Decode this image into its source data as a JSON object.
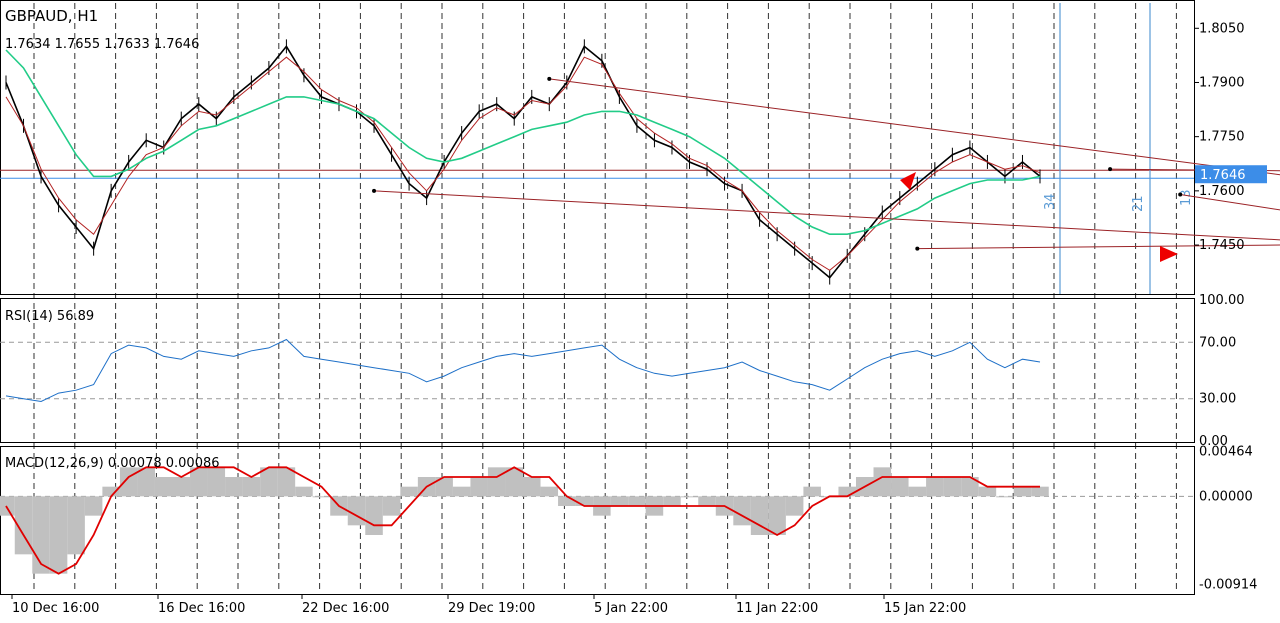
{
  "header": {
    "symbol": "GBPAUD, H1",
    "ohlc": "1.7634 1.7655 1.7633 1.7646"
  },
  "colors": {
    "background": "#ffffff",
    "price_line": "#000000",
    "ma_fast": "#b22222",
    "ma_slow": "#22cc88",
    "rsi_line": "#1e70c8",
    "macd_hist": "#c0c0c0",
    "macd_signal": "#e00000",
    "trendline": "#9b2226",
    "fib_time": "#5b9bd5",
    "current_price_badge": "#3c8de8",
    "arrow": "#ee0000"
  },
  "chart_data": [
    {
      "type": "line",
      "name": "price-panel",
      "title": "GBPAUD, H1",
      "y_ticks": [
        "1.8050",
        "1.7900",
        "1.7750",
        "1.7600",
        "1.7450"
      ],
      "ylim": [
        1.732,
        1.812
      ],
      "x_ticks": [
        "10 Dec 16:00",
        "16 Dec 16:00",
        "22 Dec 16:00",
        "29 Dec 19:00",
        "5 Jan 22:00",
        "11 Jan 22:00",
        "15 Jan 22:00"
      ],
      "current_price": "1.7646",
      "close": [
        1.79,
        1.778,
        1.764,
        1.756,
        1.75,
        1.744,
        1.76,
        1.768,
        1.774,
        1.772,
        1.78,
        1.784,
        1.78,
        1.786,
        1.79,
        1.794,
        1.8,
        1.792,
        1.786,
        1.784,
        1.782,
        1.778,
        1.77,
        1.762,
        1.758,
        1.768,
        1.776,
        1.782,
        1.784,
        1.78,
        1.786,
        1.784,
        1.79,
        1.8,
        1.796,
        1.786,
        1.778,
        1.774,
        1.772,
        1.768,
        1.766,
        1.762,
        1.76,
        1.752,
        1.748,
        1.744,
        1.74,
        1.736,
        1.742,
        1.748,
        1.754,
        1.758,
        1.762,
        1.766,
        1.77,
        1.772,
        1.768,
        1.764,
        1.768,
        1.764
      ],
      "ma_fast": [
        1.786,
        1.778,
        1.766,
        1.758,
        1.752,
        1.748,
        1.756,
        1.764,
        1.77,
        1.772,
        1.778,
        1.782,
        1.781,
        1.785,
        1.789,
        1.793,
        1.797,
        1.793,
        1.788,
        1.785,
        1.783,
        1.779,
        1.772,
        1.765,
        1.76,
        1.766,
        1.774,
        1.78,
        1.783,
        1.781,
        1.785,
        1.784,
        1.789,
        1.797,
        1.795,
        1.787,
        1.78,
        1.776,
        1.773,
        1.769,
        1.767,
        1.763,
        1.76,
        1.754,
        1.749,
        1.745,
        1.741,
        1.738,
        1.742,
        1.747,
        1.752,
        1.757,
        1.761,
        1.765,
        1.768,
        1.77,
        1.768,
        1.766,
        1.767,
        1.765
      ],
      "ma_slow": [
        1.799,
        1.794,
        1.786,
        1.778,
        1.77,
        1.764,
        1.764,
        1.766,
        1.769,
        1.771,
        1.774,
        1.777,
        1.778,
        1.78,
        1.782,
        1.784,
        1.786,
        1.786,
        1.785,
        1.784,
        1.782,
        1.78,
        1.776,
        1.772,
        1.769,
        1.768,
        1.769,
        1.771,
        1.773,
        1.775,
        1.777,
        1.778,
        1.779,
        1.781,
        1.782,
        1.782,
        1.781,
        1.779,
        1.777,
        1.775,
        1.772,
        1.769,
        1.765,
        1.761,
        1.757,
        1.753,
        1.75,
        1.748,
        1.748,
        1.749,
        1.751,
        1.753,
        1.755,
        1.758,
        1.76,
        1.762,
        1.763,
        1.763,
        1.763,
        1.764
      ],
      "trendlines": [
        {
          "from": [
            31,
            1.791
          ],
          "to": [
            75,
            1.763
          ]
        },
        {
          "from": [
            21,
            1.76
          ],
          "to": [
            82,
            1.744
          ]
        },
        {
          "from": [
            52,
            1.744
          ],
          "to": [
            77,
            1.7452
          ]
        },
        {
          "from": [
            63,
            1.766
          ],
          "to": [
            74,
            1.7655
          ]
        },
        {
          "from": [
            67,
            1.759
          ],
          "to": [
            79,
            1.75
          ]
        }
      ],
      "fib_time_labels": [
        "34",
        "21",
        "13"
      ]
    },
    {
      "type": "line",
      "name": "rsi-panel",
      "title": "RSI(14) 56.89",
      "y_ticks": [
        "100.00",
        "70.00",
        "30.00",
        "0.00"
      ],
      "ylim": [
        0,
        100
      ],
      "levels": [
        70,
        30
      ],
      "values": [
        32,
        30,
        28,
        34,
        36,
        40,
        62,
        68,
        66,
        60,
        58,
        64,
        62,
        60,
        64,
        66,
        72,
        60,
        58,
        56,
        54,
        52,
        50,
        48,
        42,
        46,
        52,
        56,
        60,
        62,
        60,
        62,
        64,
        66,
        68,
        58,
        52,
        48,
        46,
        48,
        50,
        52,
        56,
        50,
        46,
        42,
        40,
        36,
        44,
        52,
        58,
        62,
        64,
        60,
        64,
        70,
        58,
        52,
        58,
        56
      ]
    },
    {
      "type": "bar",
      "name": "macd-panel",
      "title": "MACD(12,26,9) 0.00078 0.00086",
      "y_ticks": [
        "0.00464",
        "0.00000",
        "-0.00914"
      ],
      "ylim": [
        -0.01,
        0.005
      ],
      "histogram": [
        -0.002,
        -0.006,
        -0.008,
        -0.008,
        -0.006,
        -0.002,
        0.001,
        0.003,
        0.003,
        0.002,
        0.002,
        0.003,
        0.003,
        0.002,
        0.002,
        0.003,
        0.003,
        0.001,
        0.0,
        -0.002,
        -0.003,
        -0.004,
        -0.002,
        0.001,
        0.002,
        0.002,
        0.001,
        0.002,
        0.003,
        0.003,
        0.002,
        0.001,
        -0.001,
        -0.001,
        -0.002,
        -0.001,
        -0.001,
        -0.002,
        -0.001,
        0.0,
        -0.001,
        -0.002,
        -0.003,
        -0.004,
        -0.004,
        -0.002,
        0.001,
        0.0,
        0.001,
        0.002,
        0.003,
        0.002,
        0.001,
        0.002,
        0.002,
        0.002,
        0.001,
        0.0,
        0.001,
        0.001
      ],
      "signal": [
        -0.001,
        -0.004,
        -0.007,
        -0.008,
        -0.007,
        -0.004,
        0.0,
        0.002,
        0.003,
        0.003,
        0.002,
        0.003,
        0.003,
        0.003,
        0.002,
        0.003,
        0.003,
        0.002,
        0.001,
        -0.001,
        -0.002,
        -0.003,
        -0.003,
        -0.001,
        0.001,
        0.002,
        0.002,
        0.002,
        0.002,
        0.003,
        0.002,
        0.002,
        0.0,
        -0.001,
        -0.001,
        -0.001,
        -0.001,
        -0.001,
        -0.001,
        -0.001,
        -0.001,
        -0.001,
        -0.002,
        -0.003,
        -0.004,
        -0.003,
        -0.001,
        0.0,
        0.0,
        0.001,
        0.002,
        0.002,
        0.002,
        0.002,
        0.002,
        0.002,
        0.001,
        0.001,
        0.001,
        0.001
      ]
    }
  ]
}
